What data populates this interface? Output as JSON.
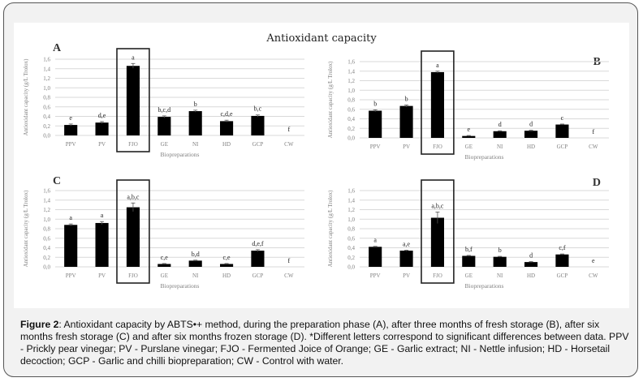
{
  "figure_title": "Antioxidant capacity",
  "caption": {
    "label": "Figure 2",
    "text": ": Antioxidant capacity by ABTS•+ method, during the preparation phase (A), after three months of fresh storage (B), after six months fresh storage (C) and after six months frozen storage (D). *Different letters correspond to significant differences between data. PPV - Prickly pear vinegar; PV - Purslane vinegar; FJO - Fermented Joice of Orange; GE - Garlic extract; NI - Nettle infusion; HD - Horsetail decoction; GCP - Garlic and chilli biopreparation; CW - Control with water."
  },
  "colors": {
    "bar": "#000000",
    "grid": "#d9d9d9",
    "axis_text": "#808080"
  },
  "chart_data": [
    {
      "type": "bar",
      "panel": "A",
      "title": "Antioxidant capacity",
      "xlabel": "Biopreparations",
      "ylabel": "Antioxidant capacity (g/L Trolox)",
      "ylim": [
        0,
        1.6
      ],
      "yticks": [
        "0,0",
        "0,2",
        "0,4",
        "0,6",
        "0,8",
        "1,0",
        "1,2",
        "1,4",
        "1,6"
      ],
      "grid": true,
      "highlighted": "FJO",
      "categories": [
        "PPV",
        "PV",
        "FJO",
        "GE",
        "NI",
        "HD",
        "GCP",
        "CW"
      ],
      "values": [
        0.22,
        0.27,
        1.46,
        0.39,
        0.51,
        0.3,
        0.41,
        0
      ],
      "errors": [
        0.02,
        0.02,
        0.05,
        0.02,
        0.02,
        0.02,
        0.02,
        0
      ],
      "letters": [
        "e",
        "d,e",
        "a",
        "b,c,d",
        "b",
        "c,d,e",
        "b,c",
        "f"
      ]
    },
    {
      "type": "bar",
      "panel": "B",
      "xlabel": "Biopreparations",
      "ylabel": "Antioxidant capacity (g/L Trolox)",
      "ylim": [
        0,
        1.6
      ],
      "yticks": [
        "0,0",
        "0,2",
        "0,4",
        "0,6",
        "0,8",
        "1,0",
        "1,2",
        "1,4",
        "1,6"
      ],
      "grid": true,
      "highlighted": "FJO",
      "categories": [
        "PPV",
        "PV",
        "FJO",
        "GE",
        "NI",
        "HD",
        "GCP",
        "CW"
      ],
      "values": [
        0.57,
        0.67,
        1.38,
        0.04,
        0.14,
        0.15,
        0.28,
        0
      ],
      "errors": [
        0.02,
        0.02,
        0.02,
        0.01,
        0.01,
        0.01,
        0.01,
        0
      ],
      "letters": [
        "b",
        "b",
        "a",
        "e",
        "d",
        "d",
        "c",
        "f"
      ]
    },
    {
      "type": "bar",
      "panel": "C",
      "xlabel": "Biopreparations",
      "ylabel": "Antioxidant capacity (g/L Trolox)",
      "ylim": [
        0,
        1.6
      ],
      "yticks": [
        "0,0",
        "0,2",
        "0,4",
        "0,6",
        "0,8",
        "1,0",
        "1,2",
        "1,4",
        "1,6"
      ],
      "grid": true,
      "highlighted": "FJO",
      "categories": [
        "PPV",
        "PV",
        "FJO",
        "GE",
        "NI",
        "HD",
        "GCP",
        "CW"
      ],
      "values": [
        0.88,
        0.92,
        1.25,
        0.06,
        0.13,
        0.06,
        0.34,
        0
      ],
      "errors": [
        0.02,
        0.03,
        0.09,
        0.01,
        0.01,
        0.01,
        0.02,
        0
      ],
      "letters": [
        "a",
        "a",
        "a,b,c",
        "c,e",
        "b,d",
        "c,e",
        "d,e,f",
        "f"
      ]
    },
    {
      "type": "bar",
      "panel": "D",
      "xlabel": "Biopreparations",
      "ylabel": "Antioxidant capacity (g/L Trolox)",
      "ylim": [
        0,
        1.6
      ],
      "yticks": [
        "0,0",
        "0,2",
        "0,4",
        "0,6",
        "0,8",
        "1,0",
        "1,2",
        "1,4",
        "1,6"
      ],
      "grid": true,
      "highlighted": "FJO",
      "categories": [
        "PPV",
        "PV",
        "FJO",
        "GE",
        "NI",
        "HD",
        "GCP",
        "CW"
      ],
      "values": [
        0.42,
        0.34,
        1.03,
        0.23,
        0.21,
        0.1,
        0.26,
        0
      ],
      "errors": [
        0.01,
        0.01,
        0.12,
        0.01,
        0.01,
        0.01,
        0.01,
        0
      ],
      "letters": [
        "a",
        "a,e",
        "a,b,c",
        "b,f",
        "b",
        "d",
        "c,f",
        "e"
      ]
    }
  ]
}
